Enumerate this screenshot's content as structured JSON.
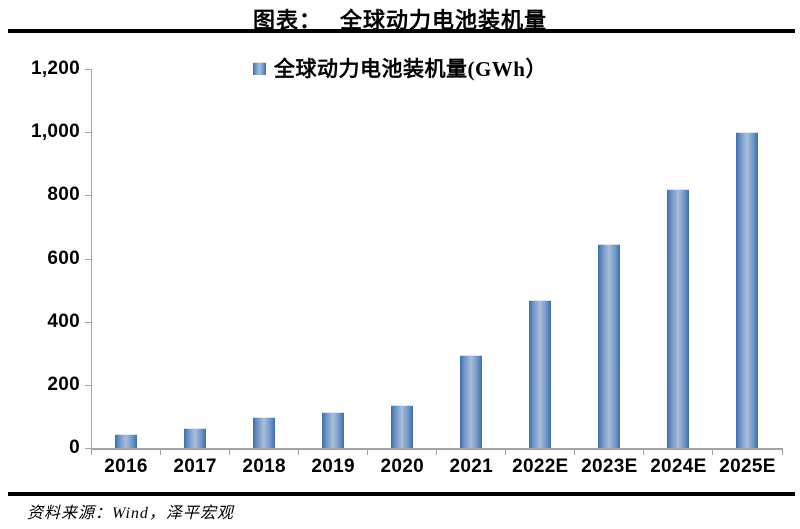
{
  "header": {
    "label": "图表：",
    "title": "全球动力电池装机量"
  },
  "legend": {
    "label": "全球动力电池装机量(GWh）"
  },
  "chart_data": {
    "type": "bar",
    "title": "全球动力电池装机量",
    "legend": [
      "全球动力电池装机量(GWh）"
    ],
    "legend_position": "top-center",
    "categories": [
      "2016",
      "2017",
      "2018",
      "2019",
      "2020",
      "2021",
      "2022E",
      "2023E",
      "2024E",
      "2025E"
    ],
    "values": [
      43,
      63,
      98,
      115,
      137,
      295,
      470,
      645,
      820,
      1000
    ],
    "unit": "GWh",
    "xlabel": "",
    "ylabel": "",
    "ylim": [
      0,
      1200
    ],
    "ytick_step": 200,
    "ytick_labels": [
      "0",
      "200",
      "400",
      "600",
      "800",
      "1,000",
      "1,200"
    ],
    "grid": false,
    "bar_colors": {
      "edge": "#3b6cb1",
      "mid": "#6f94c5",
      "center": "#a9bed9"
    },
    "axis_color": "#a3a3a3",
    "text_color": "#000000"
  },
  "footer": {
    "source": "资料来源：Wind，泽平宏观"
  }
}
